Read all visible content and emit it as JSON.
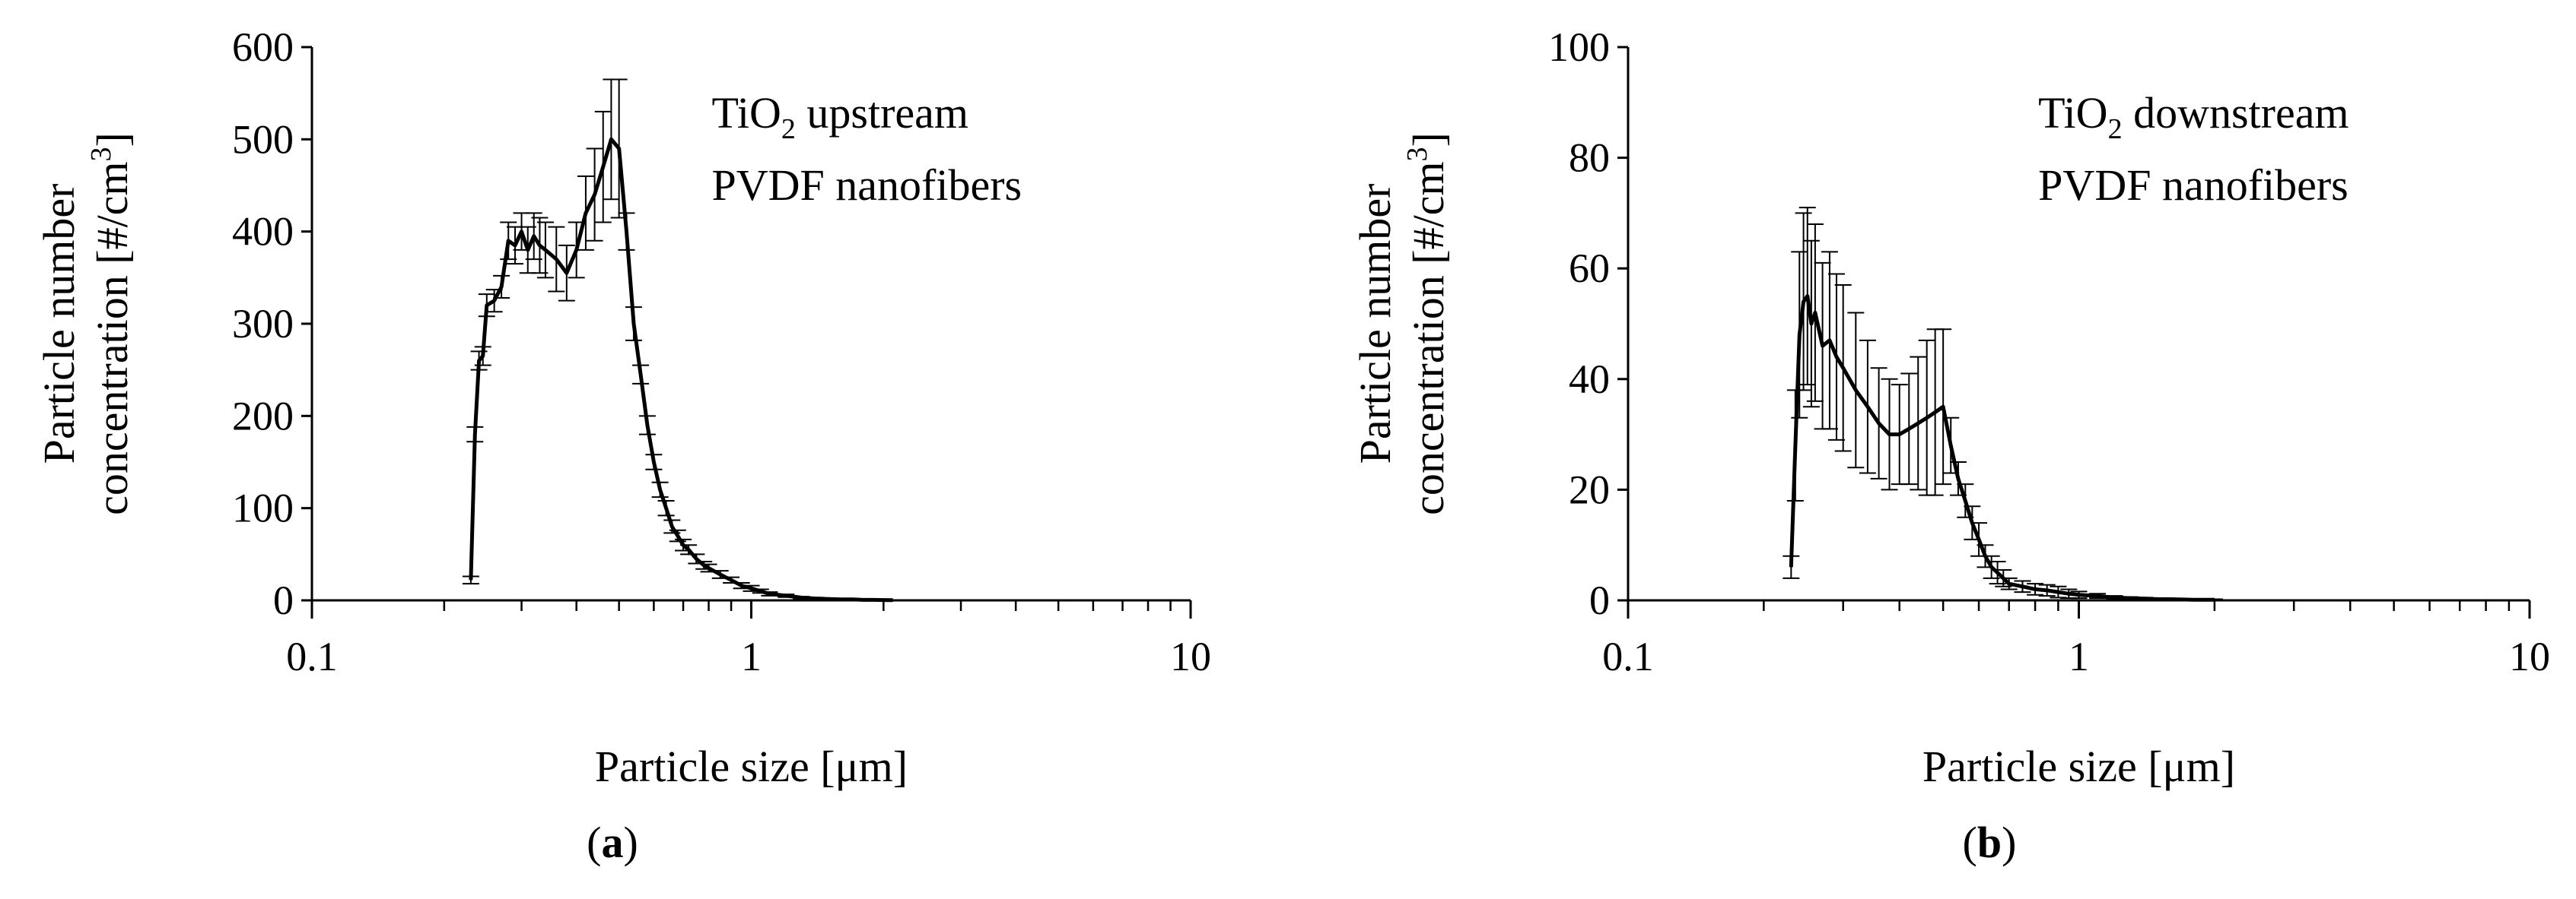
{
  "chart_data": [
    {
      "type": "line",
      "panel_label": "a",
      "annotation": {
        "line1_prefix": "TiO",
        "line1_sub": "2",
        "line1_suffix": " upstream",
        "line2": "PVDF nanofibers"
      },
      "xlabel": "Particle size [μm]",
      "ylabel": {
        "line1": "Particle number",
        "line2_prefix": "concentration [#/cm",
        "line2_sup": "3",
        "line2_suffix": "]"
      },
      "x_scale": "log",
      "xlim": [
        0.1,
        10
      ],
      "ylim": [
        0,
        600
      ],
      "x_ticks": [
        {
          "value": 0.1,
          "label": "0.1"
        },
        {
          "value": 1,
          "label": "1"
        },
        {
          "value": 10,
          "label": "10"
        }
      ],
      "y_ticks": [
        {
          "value": 0,
          "label": "0"
        },
        {
          "value": 100,
          "label": "100"
        },
        {
          "value": 200,
          "label": "200"
        },
        {
          "value": 300,
          "label": "300"
        },
        {
          "value": 400,
          "label": "400"
        },
        {
          "value": 500,
          "label": "500"
        },
        {
          "value": 600,
          "label": "600"
        }
      ],
      "grid": false,
      "series": [
        {
          "x": [
            0.23,
            0.235,
            0.24,
            0.245,
            0.25,
            0.26,
            0.27,
            0.28,
            0.29,
            0.3,
            0.31,
            0.32,
            0.33,
            0.34,
            0.36,
            0.38,
            0.4,
            0.42,
            0.44,
            0.46,
            0.48,
            0.5,
            0.52,
            0.54,
            0.56,
            0.58,
            0.6,
            0.62,
            0.64,
            0.66,
            0.68,
            0.7,
            0.72,
            0.75,
            0.78,
            0.8,
            0.85,
            0.9,
            0.95,
            1.0,
            1.05,
            1.1,
            1.2,
            1.3,
            1.4,
            1.5,
            1.6,
            1.7,
            1.8,
            1.9,
            2.0,
            2.1
          ],
          "y": [
            22,
            180,
            260,
            265,
            320,
            325,
            340,
            390,
            385,
            400,
            380,
            395,
            385,
            380,
            370,
            355,
            380,
            420,
            440,
            470,
            500,
            490,
            400,
            300,
            245,
            190,
            150,
            120,
            100,
            80,
            70,
            60,
            55,
            45,
            38,
            35,
            28,
            22,
            16,
            13,
            10,
            7,
            5,
            3,
            2,
            1.5,
            1,
            1,
            0.5,
            0.5,
            0.3,
            0.2
          ],
          "err": [
            4,
            8,
            10,
            10,
            12,
            12,
            12,
            20,
            20,
            20,
            25,
            25,
            30,
            30,
            35,
            30,
            30,
            40,
            50,
            60,
            65,
            75,
            20,
            18,
            10,
            10,
            8,
            8,
            8,
            7,
            6,
            6,
            5,
            5,
            4,
            4,
            4,
            3,
            3,
            3,
            2,
            2,
            1.5,
            1,
            1,
            0.5,
            0.5,
            0.5,
            0.3,
            0.3,
            0.2,
            0.1
          ]
        }
      ]
    },
    {
      "type": "line",
      "panel_label": "b",
      "annotation": {
        "line1_prefix": "TiO",
        "line1_sub": "2",
        "line1_suffix": " downstream",
        "line2": "PVDF nanofibers"
      },
      "xlabel": "Particle size [μm]",
      "ylabel": {
        "line1": "Particle number",
        "line2_prefix": "concentration [#/cm",
        "line2_sup": "3",
        "line2_suffix": "]"
      },
      "x_scale": "log",
      "xlim": [
        0.1,
        10
      ],
      "ylim": [
        0,
        100
      ],
      "x_ticks": [
        {
          "value": 0.1,
          "label": "0.1"
        },
        {
          "value": 1,
          "label": "1"
        },
        {
          "value": 10,
          "label": "10"
        }
      ],
      "y_ticks": [
        {
          "value": 0,
          "label": "0"
        },
        {
          "value": 20,
          "label": "20"
        },
        {
          "value": 40,
          "label": "40"
        },
        {
          "value": 60,
          "label": "60"
        },
        {
          "value": 80,
          "label": "80"
        },
        {
          "value": 100,
          "label": "100"
        }
      ],
      "grid": false,
      "series": [
        {
          "x": [
            0.23,
            0.235,
            0.24,
            0.245,
            0.25,
            0.255,
            0.26,
            0.27,
            0.28,
            0.29,
            0.3,
            0.32,
            0.34,
            0.36,
            0.38,
            0.4,
            0.42,
            0.44,
            0.46,
            0.48,
            0.5,
            0.52,
            0.54,
            0.56,
            0.58,
            0.6,
            0.62,
            0.64,
            0.66,
            0.68,
            0.7,
            0.75,
            0.8,
            0.85,
            0.9,
            0.95,
            1.0,
            1.1,
            1.2,
            1.3,
            1.4,
            1.5,
            1.6,
            1.8,
            2.0
          ],
          "y": [
            6,
            28,
            48,
            54,
            55,
            50,
            52,
            46,
            47,
            44,
            42,
            38,
            35,
            32,
            30,
            30,
            31,
            32,
            33,
            34,
            35,
            28,
            22,
            18,
            14,
            11,
            8,
            6,
            5,
            4,
            3,
            2.5,
            2,
            1.8,
            1.5,
            1.2,
            1,
            0.8,
            0.5,
            0.4,
            0.3,
            0.2,
            0.2,
            0.1,
            0.1
          ],
          "err": [
            2,
            10,
            15,
            16,
            16,
            15,
            16,
            15,
            16,
            15,
            15,
            14,
            12,
            10,
            10,
            9,
            10,
            12,
            14,
            15,
            14,
            5,
            3,
            3,
            3,
            3,
            2,
            2,
            2,
            1.5,
            1,
            1,
            1,
            1,
            1,
            0.8,
            0.6,
            0.4,
            0.3,
            0.2,
            0.2,
            0.1,
            0.1,
            0.1,
            0.1
          ]
        }
      ]
    }
  ]
}
